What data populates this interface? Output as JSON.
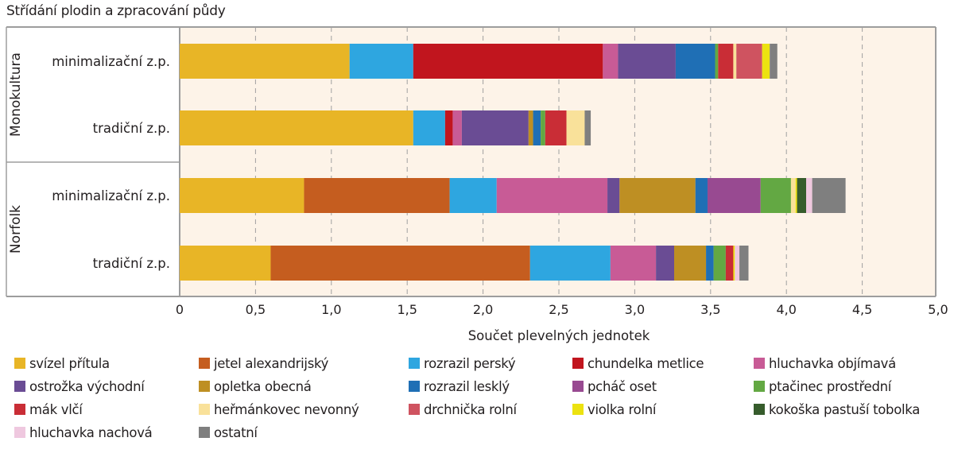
{
  "chart_data": {
    "type": "bar",
    "orientation": "horizontal",
    "stacked": true,
    "title": "Střídání plodin a zpracování půdy",
    "xlabel": "Součet plevelných jednotek",
    "ylabel": "",
    "xlim": [
      0,
      5.0
    ],
    "xticks": [
      0,
      0.5,
      1.0,
      1.5,
      2.0,
      2.5,
      3.0,
      3.5,
      4.0,
      4.5,
      5.0
    ],
    "xtick_labels": [
      "0",
      "0,5",
      "1,0",
      "1,5",
      "2,0",
      "2,5",
      "3,0",
      "3,5",
      "4,0",
      "4,5",
      "5,0"
    ],
    "grid": "vertical dashed",
    "legend_position": "bottom",
    "groups": [
      {
        "name": "Monokultura",
        "categories": [
          "minimalizační z.p.",
          "tradiční z.p."
        ]
      },
      {
        "name": "Norfolk",
        "categories": [
          "minimalizační z.p.",
          "tradiční z.p."
        ]
      }
    ],
    "categories": [
      "Monokultura – minimalizační z.p.",
      "Monokultura – tradiční z.p.",
      "Norfolk – minimalizační z.p.",
      "Norfolk – tradiční z.p."
    ],
    "series": [
      {
        "name": "svízel přítula",
        "color": "#e8b526",
        "values": [
          1.12,
          1.54,
          0.82,
          0.6
        ]
      },
      {
        "name": "jetel alexandrijský",
        "color": "#c55d1f",
        "values": [
          0,
          0,
          0.96,
          1.71
        ]
      },
      {
        "name": "rozrazil perský",
        "color": "#2ea6e0",
        "values": [
          0.42,
          0.21,
          0.31,
          0.53
        ]
      },
      {
        "name": "chundelka metlice",
        "color": "#c1151e",
        "values": [
          1.25,
          0.05,
          0,
          0
        ]
      },
      {
        "name": "hluchavka objímavá",
        "color": "#c85b96",
        "values": [
          0.1,
          0.06,
          0.73,
          0.3
        ]
      },
      {
        "name": "ostrožka východní",
        "color": "#6a4c94",
        "values": [
          0.38,
          0.44,
          0.08,
          0.12
        ]
      },
      {
        "name": "opletka obecná",
        "color": "#be8f23",
        "values": [
          0,
          0.03,
          0.5,
          0.21
        ]
      },
      {
        "name": "rozrazil lesklý",
        "color": "#1f6fb5",
        "values": [
          0.26,
          0.05,
          0.08,
          0.05
        ]
      },
      {
        "name": "pcháč oset",
        "color": "#984a91",
        "values": [
          0,
          0,
          0.35,
          0
        ]
      },
      {
        "name": "ptačinec prostřední",
        "color": "#63a843",
        "values": [
          0.02,
          0.03,
          0.2,
          0.08
        ]
      },
      {
        "name": "mák vlčí",
        "color": "#c92d36",
        "values": [
          0.1,
          0.14,
          0,
          0.05
        ]
      },
      {
        "name": "heřmánkovec nevonný",
        "color": "#f9e19a",
        "values": [
          0.02,
          0.12,
          0.03,
          0
        ]
      },
      {
        "name": "drchnička rolní",
        "color": "#cf5360",
        "values": [
          0.17,
          0,
          0,
          0
        ]
      },
      {
        "name": "violka rolní",
        "color": "#ece210",
        "values": [
          0.05,
          0,
          0.01,
          0.01
        ]
      },
      {
        "name": "kokoška pastuší tobolka",
        "color": "#365c2c",
        "values": [
          0,
          0,
          0.06,
          0
        ]
      },
      {
        "name": "hluchavka nachová",
        "color": "#efc8df",
        "values": [
          0,
          0,
          0.04,
          0.03
        ]
      },
      {
        "name": "ostatní",
        "color": "#7f7f7f",
        "values": [
          0.05,
          0.04,
          0.22,
          0.06
        ]
      }
    ]
  },
  "colors": {
    "plot_background": "#fdf3e8",
    "frame": "#9d9d9d",
    "grid": "#a0a0a0"
  }
}
